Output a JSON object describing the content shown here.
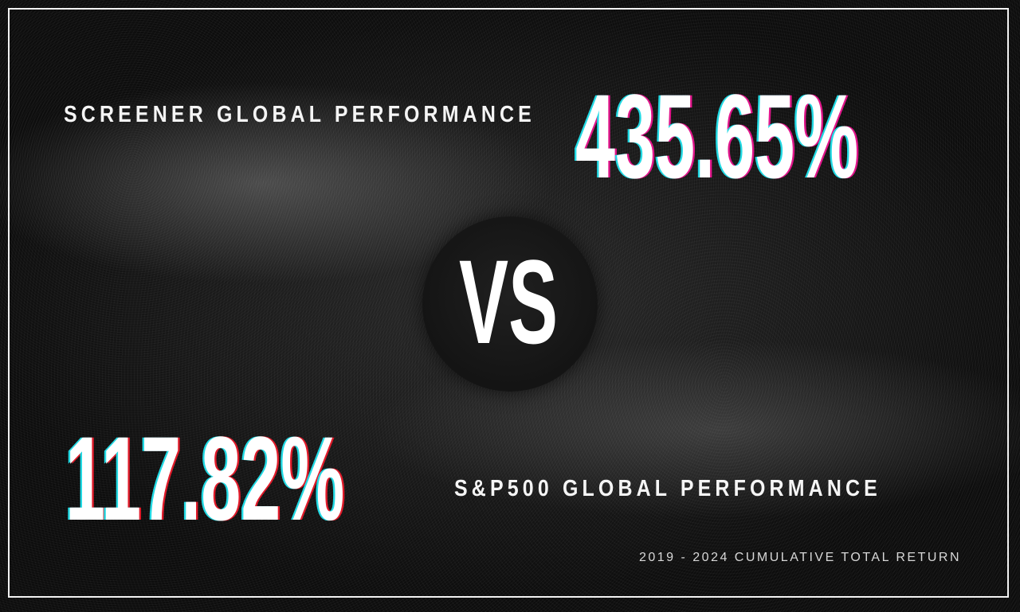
{
  "screener": {
    "label": "SCREENER GLOBAL PERFORMANCE",
    "value": "435.65%"
  },
  "versus": {
    "text": "VS"
  },
  "sp500": {
    "label": "S&P500 GLOBAL PERFORMANCE",
    "value": "117.82%"
  },
  "footnote": "2019 - 2024 CUMULATIVE TOTAL RETURN",
  "colors": {
    "background": "#111111",
    "text": "#ffffff",
    "glitch_cyan": "#21d9e3",
    "glitch_magenta": "#e0158a",
    "glitch_red": "#e01b2a",
    "frame": "#f2f2f2"
  }
}
